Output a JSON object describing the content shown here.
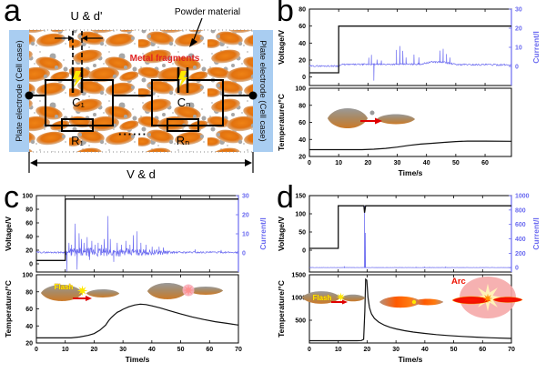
{
  "panel_letters": {
    "a": "a",
    "b": "b",
    "c": "c",
    "d": "d"
  },
  "schematic": {
    "u_d_label": "U & d'",
    "powder_label": "Powder material",
    "metal_label": "Metal fragments",
    "electrode_left": "Plate electrode (Cell case)",
    "electrode_right": "Plate electrode (Cell case)",
    "cap1": "C₁",
    "capn": "Cₙ",
    "res1": "R₁",
    "resn": "Rₙ",
    "dots": "······",
    "v_d_label": "V & d"
  },
  "insets": {
    "c_flash": "Flash",
    "d_flash": "Flash",
    "d_arc": "Arc"
  },
  "colors": {
    "current_blue": "#6a6af0",
    "voltage_black": "#111111",
    "particle_orange": "#e2720f",
    "electrode_blue": "#a9cdf1",
    "metal_red": "#e02525",
    "flash_yellow": "#ffe800",
    "arc_red": "#ee1100"
  },
  "chart_data": [
    {
      "panel": "b",
      "type": "line",
      "top": {
        "ylabel": "Voltage/V",
        "ylim": [
          -10,
          80
        ],
        "yticks": [
          0,
          20,
          40,
          60,
          80
        ],
        "y2label": "Current/I",
        "y2lim": [
          -10,
          30
        ],
        "y2ticks": [
          0,
          10,
          20,
          30
        ],
        "xlim": [
          0,
          69
        ],
        "xticks": [
          0,
          10,
          20,
          30,
          40,
          50,
          60
        ],
        "voltage": [
          [
            0,
            5
          ],
          [
            10,
            5
          ],
          [
            10,
            60
          ],
          [
            69,
            60
          ]
        ],
        "current_base": [
          [
            0,
            0.2
          ],
          [
            10,
            0.2
          ],
          [
            11,
            1
          ],
          [
            38,
            1.2
          ],
          [
            42,
            2.4
          ],
          [
            46,
            2.2
          ],
          [
            50,
            1
          ],
          [
            69,
            0.8
          ]
        ],
        "noise_profile": [
          [
            0,
            0.35
          ],
          [
            69,
            0.45
          ]
        ],
        "current_spikes": [
          [
            20.3,
            3.5
          ],
          [
            21.2,
            5
          ],
          [
            22.0,
            -8.5
          ],
          [
            23.1,
            2.5
          ],
          [
            24.6,
            2
          ],
          [
            29.7,
            7.5
          ],
          [
            30.9,
            9.5
          ],
          [
            31.9,
            7
          ],
          [
            33.0,
            3.5
          ],
          [
            35.7,
            5
          ],
          [
            37.4,
            3.5
          ],
          [
            44.6,
            6
          ],
          [
            45.7,
            7
          ],
          [
            46.8,
            4.5
          ],
          [
            48.0,
            3
          ]
        ]
      },
      "bottom": {
        "ylabel": "Temperature/°C",
        "ylim": [
          20,
          100
        ],
        "yticks": [
          20,
          40,
          60,
          80,
          100
        ],
        "xlabel": "Time/s",
        "xlim": [
          0,
          69
        ],
        "xticks": [
          0,
          10,
          20,
          30,
          40,
          50,
          60
        ],
        "temperature": [
          [
            0,
            28
          ],
          [
            18,
            28
          ],
          [
            22,
            28.5
          ],
          [
            26,
            29.5
          ],
          [
            30,
            31
          ],
          [
            34,
            33
          ],
          [
            38,
            34.5
          ],
          [
            42,
            35.5
          ],
          [
            46,
            36.5
          ],
          [
            50,
            37.5
          ],
          [
            54,
            38
          ],
          [
            60,
            38
          ],
          [
            69,
            37.8
          ]
        ]
      }
    },
    {
      "panel": "c",
      "type": "line",
      "top": {
        "ylabel": "Voltage/V",
        "ylim": [
          -12,
          100
        ],
        "yticks": [
          0,
          20,
          40,
          60,
          80,
          100
        ],
        "y2label": "Current/I",
        "y2lim": [
          -10,
          30
        ],
        "y2ticks": [
          0,
          10,
          20,
          30
        ],
        "xlim": [
          0,
          70
        ],
        "xticks": [
          0,
          10,
          20,
          30,
          40,
          50,
          60,
          70
        ],
        "voltage": [
          [
            0,
            5
          ],
          [
            10,
            5
          ],
          [
            10,
            95
          ],
          [
            70,
            95
          ]
        ],
        "current_base": [
          [
            0,
            0.3
          ],
          [
            70,
            0.3
          ]
        ],
        "noise_profile": [
          [
            0,
            0.4
          ],
          [
            10,
            0.4
          ],
          [
            10.5,
            2.2
          ],
          [
            25,
            2.4
          ],
          [
            35,
            1.8
          ],
          [
            45,
            1.2
          ],
          [
            47,
            0.5
          ],
          [
            70,
            0.4
          ]
        ],
        "current_spikes": [
          [
            10.6,
            -10
          ],
          [
            11.3,
            5
          ],
          [
            12.2,
            4
          ],
          [
            13.4,
            15
          ],
          [
            14.1,
            -9
          ],
          [
            14.8,
            10
          ],
          [
            15.6,
            7
          ],
          [
            16.5,
            5
          ],
          [
            17.6,
            8
          ],
          [
            18.4,
            -4
          ],
          [
            19.2,
            6
          ],
          [
            20.3,
            4
          ],
          [
            21.4,
            5
          ],
          [
            22.6,
            4
          ],
          [
            23.5,
            7
          ],
          [
            24.8,
            19
          ],
          [
            25.6,
            7
          ],
          [
            26.8,
            -5
          ],
          [
            28.0,
            5
          ],
          [
            29.5,
            4
          ],
          [
            31.0,
            6
          ],
          [
            32.4,
            4
          ],
          [
            33.6,
            9
          ],
          [
            34.9,
            11
          ],
          [
            36.2,
            5
          ],
          [
            38.0,
            4
          ],
          [
            40.1,
            3
          ],
          [
            42.5,
            3
          ],
          [
            44.0,
            2.5
          ],
          [
            55.0,
            1.5
          ],
          [
            64.0,
            1.2
          ]
        ]
      },
      "bottom": {
        "ylabel": "Temperature/°C",
        "ylim": [
          20,
          100
        ],
        "yticks": [
          20,
          40,
          60,
          80,
          100
        ],
        "xlabel": "Time/s",
        "xlim": [
          0,
          70
        ],
        "xticks": [
          0,
          10,
          20,
          30,
          40,
          50,
          60,
          70
        ],
        "temperature": [
          [
            0,
            26
          ],
          [
            12,
            26
          ],
          [
            15,
            27
          ],
          [
            18,
            29
          ],
          [
            20,
            31
          ],
          [
            22,
            35
          ],
          [
            24,
            41
          ],
          [
            25,
            46
          ],
          [
            26,
            50
          ],
          [
            27,
            53
          ],
          [
            28,
            56
          ],
          [
            29,
            57.5
          ],
          [
            30,
            59.5
          ],
          [
            32,
            62.5
          ],
          [
            34,
            64.5
          ],
          [
            36,
            65.5
          ],
          [
            38,
            65
          ],
          [
            40,
            63.5
          ],
          [
            43,
            61
          ],
          [
            46,
            58
          ],
          [
            50,
            54
          ],
          [
            54,
            50.5
          ],
          [
            58,
            47.5
          ],
          [
            62,
            45
          ],
          [
            66,
            43
          ],
          [
            70,
            41
          ]
        ]
      }
    },
    {
      "panel": "d",
      "type": "line",
      "top": {
        "ylabel": "Voltage/V",
        "ylim": [
          -60,
          150
        ],
        "yticks": [
          0,
          50,
          100,
          150
        ],
        "y2label": "Current/I",
        "y2lim": [
          -60,
          1000
        ],
        "y2ticks": [
          0,
          200,
          400,
          600,
          800,
          1000
        ],
        "xlim": [
          0,
          70
        ],
        "xticks": [
          0,
          10,
          20,
          30,
          40,
          50,
          60,
          70
        ],
        "voltage": [
          [
            0,
            5
          ],
          [
            10,
            5
          ],
          [
            10,
            122
          ],
          [
            18.9,
            122
          ],
          [
            19.1,
            103
          ],
          [
            19.5,
            122
          ],
          [
            70,
            122
          ]
        ],
        "current_base": [
          [
            0,
            2
          ],
          [
            70,
            2
          ]
        ],
        "noise_profile": [
          [
            0,
            1.5
          ],
          [
            70,
            1.5
          ]
        ],
        "current_spikes": [
          [
            12.1,
            10
          ],
          [
            19.1,
            855
          ],
          [
            19.35,
            480
          ],
          [
            36.9,
            9
          ],
          [
            39.8,
            12
          ],
          [
            41.6,
            8
          ],
          [
            47.2,
            6
          ]
        ]
      },
      "bottom": {
        "ylabel": "Temperature/°C",
        "ylim": [
          0,
          1500
        ],
        "yticks": [
          500,
          1000,
          1500
        ],
        "xlabel": "Time/s",
        "xlim": [
          0,
          70
        ],
        "xticks": [
          0,
          10,
          20,
          30,
          40,
          50,
          60,
          70
        ],
        "temperature": [
          [
            0,
            50
          ],
          [
            16.5,
            50
          ],
          [
            18,
            55
          ],
          [
            18.8,
            80
          ],
          [
            19.2,
            700
          ],
          [
            19.5,
            1400
          ],
          [
            19.9,
            1380
          ],
          [
            20.3,
            1000
          ],
          [
            20.8,
            780
          ],
          [
            21.5,
            640
          ],
          [
            22.5,
            540
          ],
          [
            24,
            460
          ],
          [
            26,
            390
          ],
          [
            28,
            345
          ],
          [
            30,
            310
          ],
          [
            33,
            270
          ],
          [
            36,
            240
          ],
          [
            40,
            210
          ],
          [
            44,
            185
          ],
          [
            48,
            165
          ],
          [
            53,
            145
          ],
          [
            58,
            128
          ],
          [
            63,
            115
          ],
          [
            70,
            100
          ]
        ]
      }
    }
  ]
}
